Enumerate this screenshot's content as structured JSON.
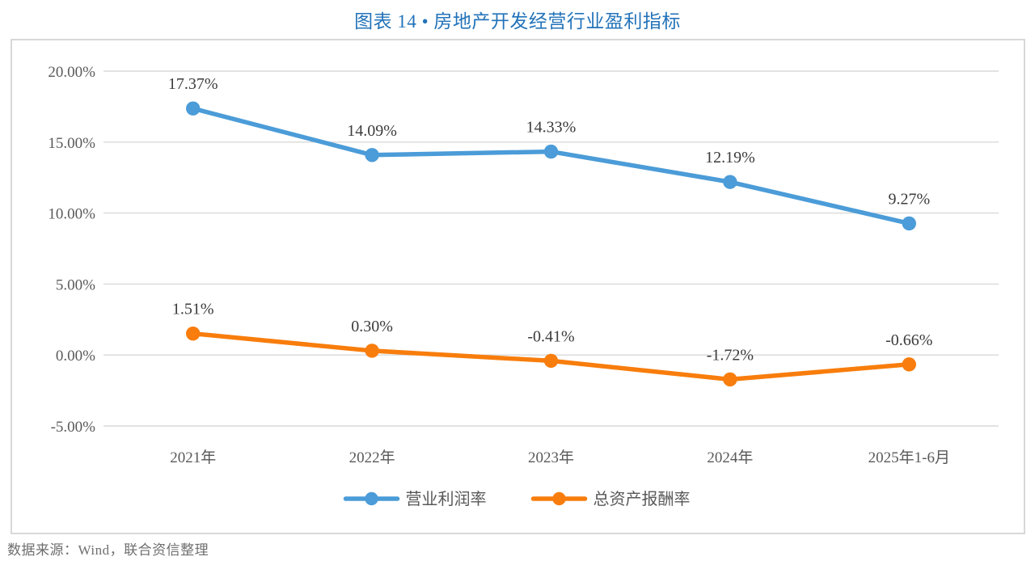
{
  "title": "图表 14 • 房地产开发经营行业盈利指标",
  "source_note": "数据来源：Wind，联合资信整理",
  "colors": {
    "title_blue": "#2373B9",
    "series_blue": "#4B9CD8",
    "series_orange": "#F87D0C",
    "gridline": "#D9D9D9",
    "frame_border": "#D8D8D8",
    "axis_text": "#595959",
    "data_label_text": "#3B3B3B",
    "source_text": "#6E6E6E"
  },
  "chart_data": {
    "type": "line",
    "title": "图表 14 • 房地产开发经营行业盈利指标",
    "categories": [
      "2021年",
      "2022年",
      "2023年",
      "2024年",
      "2025年1-6月"
    ],
    "series": [
      {
        "name": "营业利润率",
        "color": "#4B9CD8",
        "values": [
          17.37,
          14.09,
          14.33,
          12.19,
          9.27
        ],
        "labels": [
          "17.37%",
          "14.09%",
          "14.33%",
          "12.19%",
          "9.27%"
        ]
      },
      {
        "name": "总资产报酬率",
        "color": "#F87D0C",
        "values": [
          1.51,
          0.3,
          -0.41,
          -1.72,
          -0.66
        ],
        "labels": [
          "1.51%",
          "0.30%",
          "-0.41%",
          "-1.72%",
          "-0.66%"
        ]
      }
    ],
    "y_axis": {
      "min": -5,
      "max": 20,
      "step": 5,
      "tick_labels": [
        "20.00%",
        "15.00%",
        "10.00%",
        "5.00%",
        "0.00%",
        "-5.00%"
      ]
    },
    "grid": true,
    "legend_position": "bottom",
    "marker": "circle",
    "data_labels_shown": true
  }
}
